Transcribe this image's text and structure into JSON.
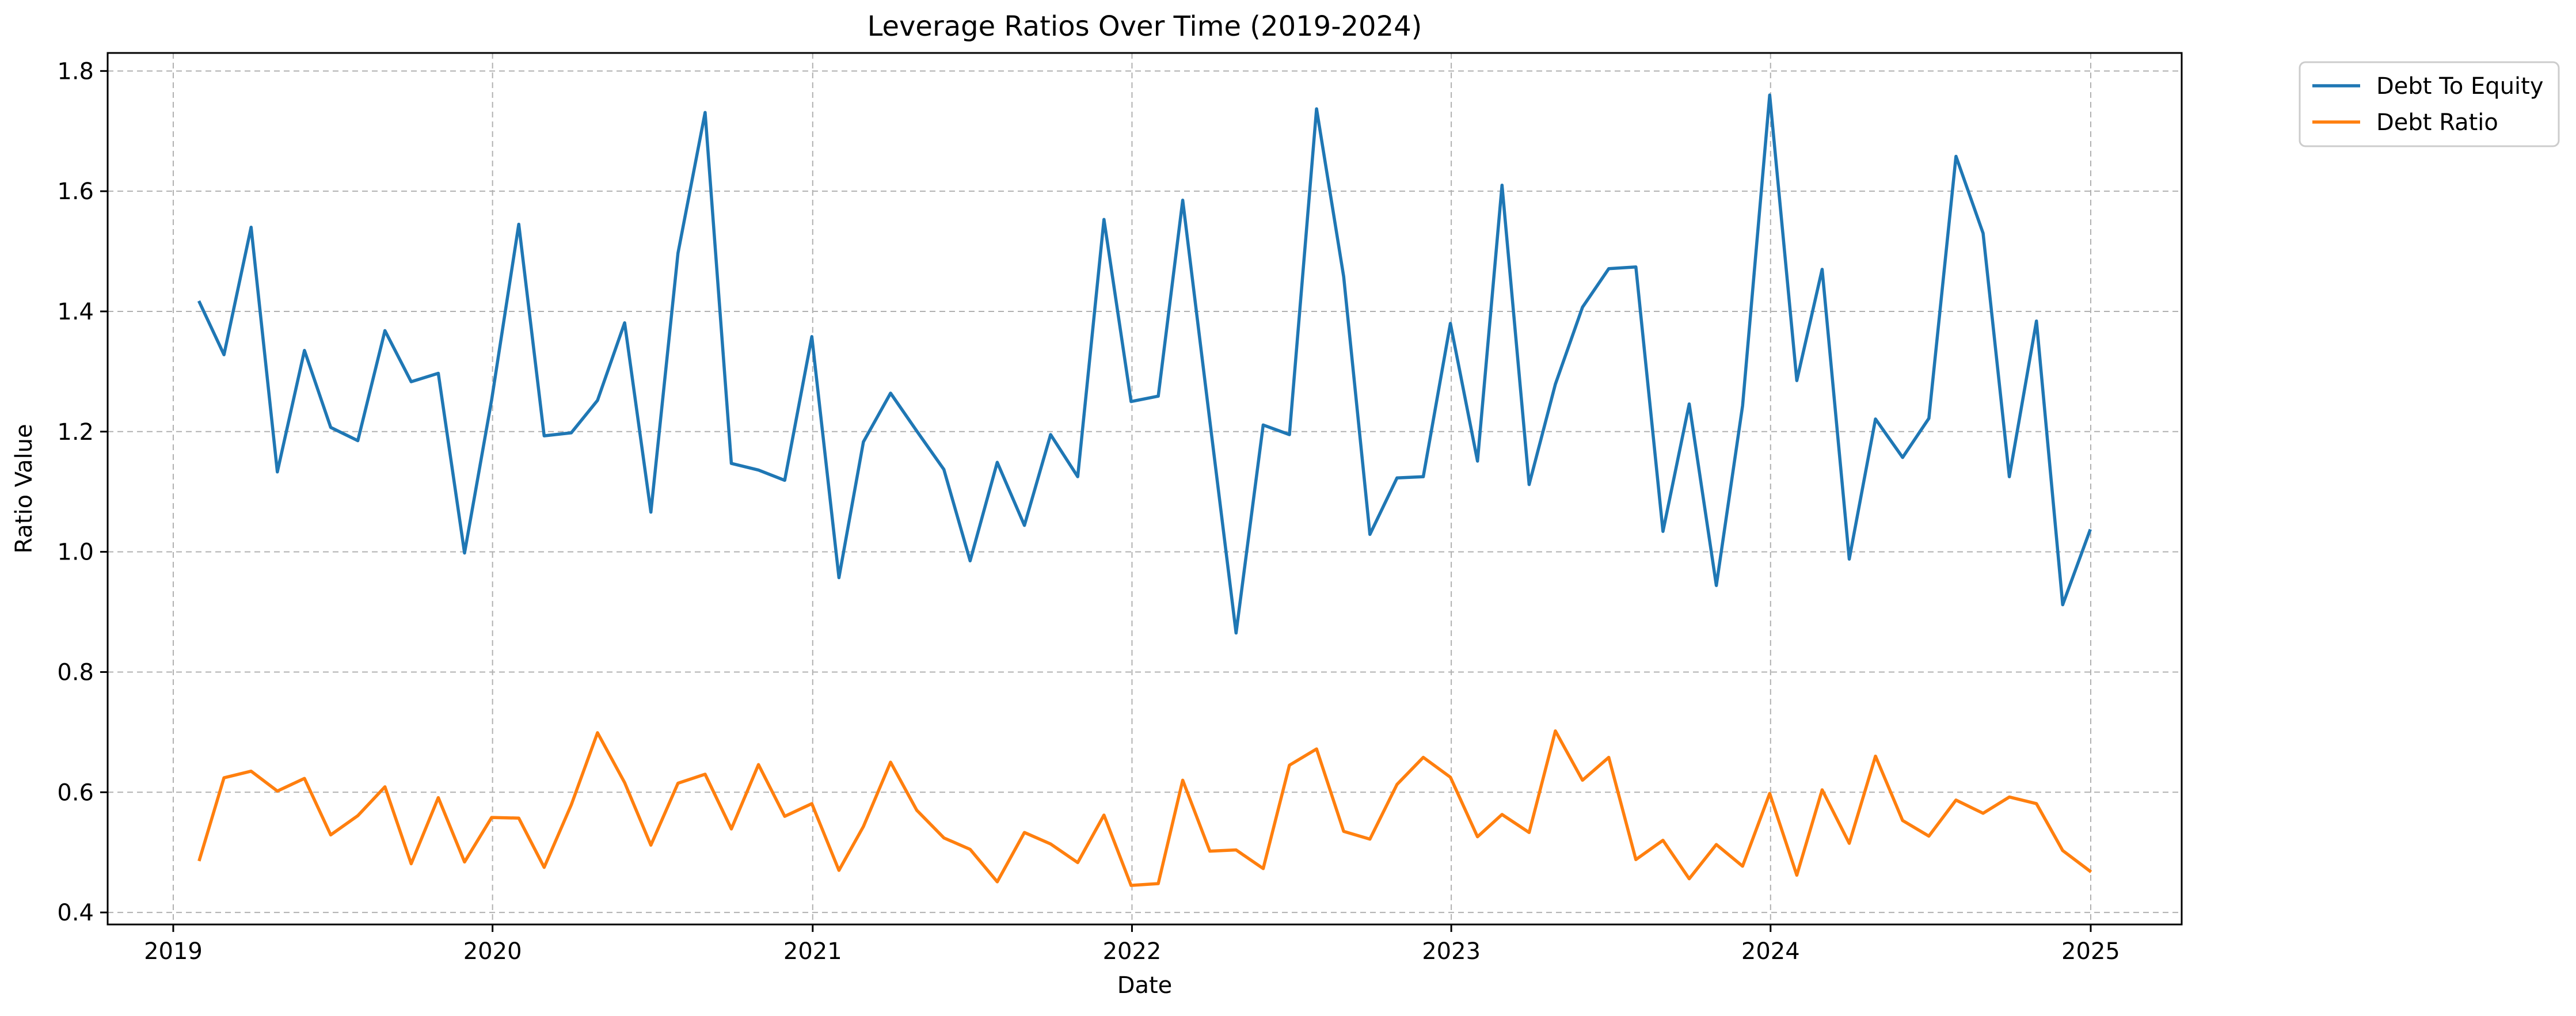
{
  "chart_data": {
    "type": "line",
    "title": "Leverage Ratios Over Time (2019-2024)",
    "xlabel": "Date",
    "ylabel": "Ratio Value",
    "ylim": [
      0.38,
      1.83
    ],
    "xlim": [
      "2018-10-18",
      "2025-04-15"
    ],
    "x_ticks": [
      {
        "date": "2019-01-01",
        "label": "2019"
      },
      {
        "date": "2020-01-01",
        "label": "2020"
      },
      {
        "date": "2021-01-01",
        "label": "2021"
      },
      {
        "date": "2022-01-01",
        "label": "2022"
      },
      {
        "date": "2023-01-01",
        "label": "2023"
      },
      {
        "date": "2024-01-01",
        "label": "2024"
      },
      {
        "date": "2025-01-01",
        "label": "2025"
      }
    ],
    "y_ticks": [
      0.4,
      0.6,
      0.8,
      1.0,
      1.2,
      1.4,
      1.6,
      1.8
    ],
    "y_tick_labels": [
      "0.4",
      "0.6",
      "0.8",
      "1.0",
      "1.2",
      "1.4",
      "1.6",
      "1.8"
    ],
    "grid": true,
    "legend_position": "outside-top-right",
    "x": [
      "2019-01-31",
      "2019-02-28",
      "2019-03-31",
      "2019-04-30",
      "2019-05-31",
      "2019-06-30",
      "2019-07-31",
      "2019-08-31",
      "2019-09-30",
      "2019-10-31",
      "2019-11-30",
      "2019-12-31",
      "2020-01-31",
      "2020-02-29",
      "2020-03-31",
      "2020-04-30",
      "2020-05-31",
      "2020-06-30",
      "2020-07-31",
      "2020-08-31",
      "2020-09-30",
      "2020-10-31",
      "2020-11-30",
      "2020-12-31",
      "2021-01-31",
      "2021-02-28",
      "2021-03-31",
      "2021-04-30",
      "2021-05-31",
      "2021-06-30",
      "2021-07-31",
      "2021-08-31",
      "2021-09-30",
      "2021-10-31",
      "2021-11-30",
      "2021-12-31",
      "2022-01-31",
      "2022-02-28",
      "2022-03-31",
      "2022-04-30",
      "2022-05-31",
      "2022-06-30",
      "2022-07-31",
      "2022-08-31",
      "2022-09-30",
      "2022-10-31",
      "2022-11-30",
      "2022-12-31",
      "2023-01-31",
      "2023-02-28",
      "2023-03-31",
      "2023-04-30",
      "2023-05-31",
      "2023-06-30",
      "2023-07-31",
      "2023-08-31",
      "2023-09-30",
      "2023-10-31",
      "2023-11-30",
      "2023-12-31",
      "2024-01-31",
      "2024-02-29",
      "2024-03-31",
      "2024-04-30",
      "2024-05-31",
      "2024-06-30",
      "2024-07-31",
      "2024-08-31",
      "2024-09-30",
      "2024-10-31",
      "2024-11-30",
      "2024-12-31"
    ],
    "series": [
      {
        "name": "Debt To Equity",
        "color": "#1f77b4",
        "values": [
          1.415,
          1.328,
          1.54,
          1.133,
          1.335,
          1.207,
          1.185,
          1.368,
          1.283,
          1.297,
          0.998,
          1.253,
          1.545,
          1.193,
          1.198,
          1.252,
          1.381,
          1.066,
          1.497,
          1.731,
          1.147,
          1.136,
          1.119,
          1.358,
          0.957,
          1.183,
          1.264,
          1.201,
          1.137,
          0.985,
          1.149,
          1.044,
          1.195,
          1.125,
          1.553,
          1.25,
          1.259,
          1.585,
          1.218,
          0.865,
          1.211,
          1.195,
          1.737,
          1.458,
          1.029,
          1.123,
          1.125,
          1.38,
          1.151,
          1.61,
          1.112,
          1.279,
          1.407,
          1.471,
          1.474,
          1.034,
          1.246,
          0.944,
          1.243,
          1.76,
          1.285,
          1.47,
          0.988,
          1.221,
          1.157,
          1.222,
          1.658,
          1.53,
          1.125,
          1.384,
          0.912,
          1.035
        ]
      },
      {
        "name": "Debt Ratio",
        "color": "#ff7f0e",
        "values": [
          0.488,
          0.624,
          0.635,
          0.602,
          0.623,
          0.529,
          0.561,
          0.609,
          0.481,
          0.591,
          0.484,
          0.558,
          0.557,
          0.475,
          0.579,
          0.699,
          0.616,
          0.512,
          0.615,
          0.63,
          0.539,
          0.646,
          0.56,
          0.581,
          0.47,
          0.543,
          0.65,
          0.57,
          0.524,
          0.505,
          0.451,
          0.533,
          0.514,
          0.483,
          0.562,
          0.445,
          0.448,
          0.62,
          0.502,
          0.504,
          0.473,
          0.645,
          0.672,
          0.535,
          0.522,
          0.613,
          0.658,
          0.625,
          0.526,
          0.563,
          0.533,
          0.702,
          0.62,
          0.658,
          0.488,
          0.52,
          0.456,
          0.513,
          0.477,
          0.598,
          0.462,
          0.604,
          0.515,
          0.66,
          0.553,
          0.527,
          0.587,
          0.565,
          0.592,
          0.581,
          0.503,
          0.469
        ]
      }
    ]
  }
}
